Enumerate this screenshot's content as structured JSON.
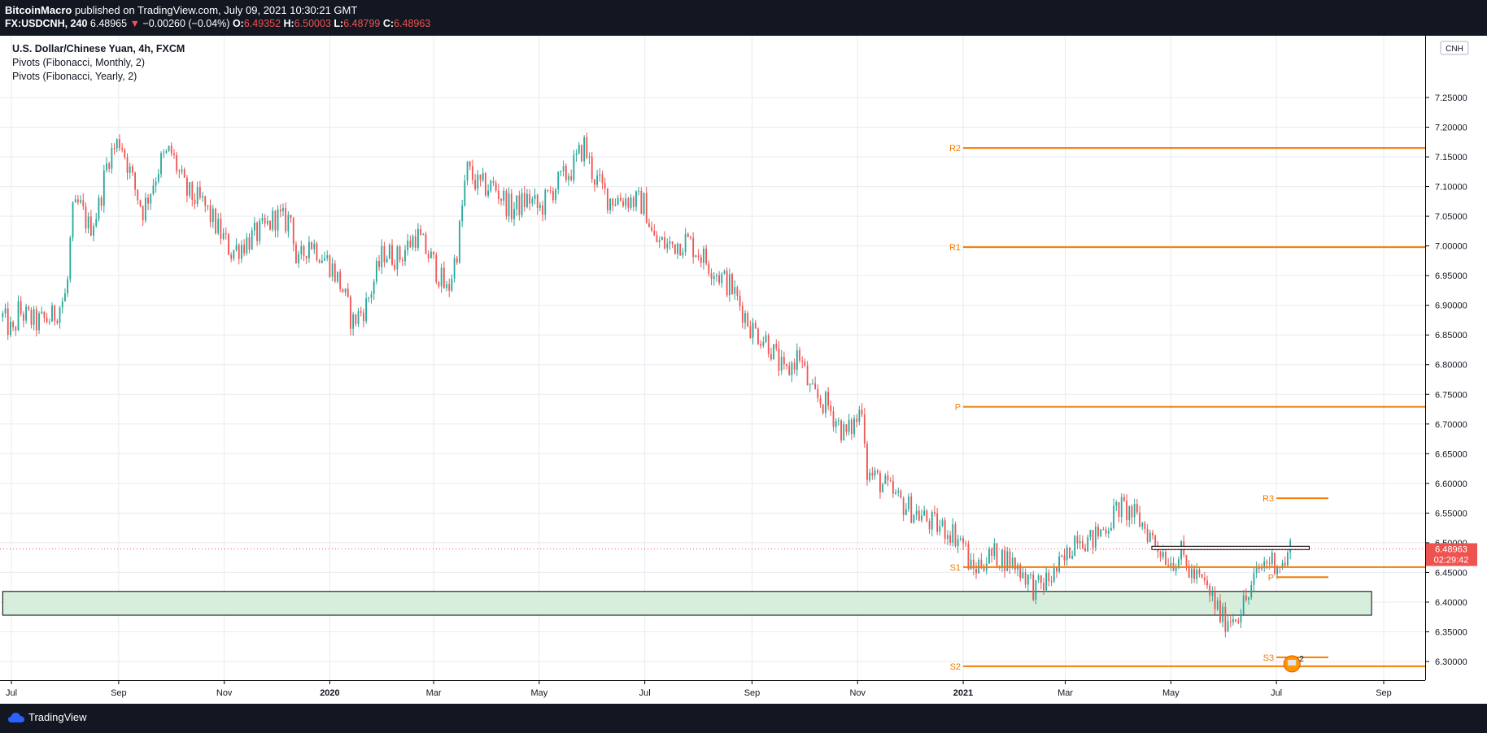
{
  "header": {
    "author": "BitcoinMacro",
    "published_text": " published on TradingView.com, July 09, 2021 10:30:21 GMT",
    "symbol_interval": "FX:USDCNH, 240",
    "last": "6.48965",
    "arrow": "▼",
    "change": "−0.00260 (−0.04%)",
    "o_label": "O:",
    "o_value": "6.49352",
    "h_label": "H:",
    "h_value": "6.50003",
    "l_label": "L:",
    "l_value": "6.48799",
    "c_label": "C:",
    "c_value": "6.48963"
  },
  "legend": {
    "symbol_title": "U.S. Dollar/Chinese Yuan, 4h, FXCM",
    "indicator_monthly": "Pivots (Fibonacci, Monthly, 2)",
    "indicator_yearly": "Pivots (Fibonacci, Yearly, 2)"
  },
  "footer": {
    "brand": "TradingView"
  },
  "colors": {
    "up": "#26a69a",
    "down": "#ef5350",
    "pivot": "#f57c00",
    "grid": "#e7ebf0",
    "zone": "#d7eedc"
  },
  "chart_data": {
    "type": "candlestick",
    "currency_label": "CNH",
    "ylim": [
      6.27,
      7.28
    ],
    "y_ticks": [
      "7.25000",
      "7.20000",
      "7.15000",
      "7.10000",
      "7.05000",
      "7.00000",
      "6.95000",
      "6.90000",
      "6.85000",
      "6.80000",
      "6.75000",
      "6.70000",
      "6.65000",
      "6.60000",
      "6.55000",
      "6.50000",
      "6.45000",
      "6.40000",
      "6.35000",
      "6.30000"
    ],
    "x_ticks": [
      {
        "label": "Jul",
        "date": "2019-07-01",
        "bold": false
      },
      {
        "label": "Sep",
        "date": "2019-09-01",
        "bold": false
      },
      {
        "label": "Nov",
        "date": "2019-11-01",
        "bold": false
      },
      {
        "label": "2020",
        "date": "2020-01-01",
        "bold": true
      },
      {
        "label": "Mar",
        "date": "2020-03-01",
        "bold": false
      },
      {
        "label": "May",
        "date": "2020-05-01",
        "bold": false
      },
      {
        "label": "Jul",
        "date": "2020-07-01",
        "bold": false
      },
      {
        "label": "Sep",
        "date": "2020-09-01",
        "bold": false
      },
      {
        "label": "Nov",
        "date": "2020-11-01",
        "bold": false
      },
      {
        "label": "2021",
        "date": "2021-01-01",
        "bold": true
      },
      {
        "label": "Mar",
        "date": "2021-03-01",
        "bold": false
      },
      {
        "label": "May",
        "date": "2021-05-01",
        "bold": false
      },
      {
        "label": "Jul",
        "date": "2021-07-01",
        "bold": false
      },
      {
        "label": "Sep",
        "date": "2021-09-01",
        "bold": false
      }
    ],
    "price_path": [
      [
        "2019-06-26",
        6.88
      ],
      [
        "2019-07-02",
        6.85
      ],
      [
        "2019-07-05",
        6.89
      ],
      [
        "2019-07-15",
        6.87
      ],
      [
        "2019-07-25",
        6.88
      ],
      [
        "2019-08-02",
        6.92
      ],
      [
        "2019-08-05",
        7.05
      ],
      [
        "2019-08-09",
        7.07
      ],
      [
        "2019-08-15",
        7.03
      ],
      [
        "2019-08-20",
        7.06
      ],
      [
        "2019-08-26",
        7.15
      ],
      [
        "2019-09-02",
        7.18
      ],
      [
        "2019-09-10",
        7.1
      ],
      [
        "2019-09-15",
        7.06
      ],
      [
        "2019-09-25",
        7.14
      ],
      [
        "2019-10-01",
        7.16
      ],
      [
        "2019-10-10",
        7.09
      ],
      [
        "2019-10-20",
        7.07
      ],
      [
        "2019-11-01",
        7.01
      ],
      [
        "2019-11-05",
        6.99
      ],
      [
        "2019-11-15",
        7.01
      ],
      [
        "2019-11-25",
        7.03
      ],
      [
        "2019-12-01",
        7.05
      ],
      [
        "2019-12-06",
        7.04
      ],
      [
        "2019-12-10",
        7.05
      ],
      [
        "2019-12-13",
        6.96
      ],
      [
        "2019-12-20",
        7.01
      ],
      [
        "2020-01-01",
        6.97
      ],
      [
        "2020-01-08",
        6.93
      ],
      [
        "2020-01-14",
        6.87
      ],
      [
        "2020-01-22",
        6.9
      ],
      [
        "2020-02-01",
        6.99
      ],
      [
        "2020-02-10",
        6.98
      ],
      [
        "2020-02-20",
        7.02
      ],
      [
        "2020-03-01",
        6.97
      ],
      [
        "2020-03-09",
        6.92
      ],
      [
        "2020-03-15",
        7.0
      ],
      [
        "2020-03-20",
        7.13
      ],
      [
        "2020-03-27",
        7.1
      ],
      [
        "2020-04-05",
        7.1
      ],
      [
        "2020-04-15",
        7.06
      ],
      [
        "2020-04-25",
        7.08
      ],
      [
        "2020-05-01",
        7.06
      ],
      [
        "2020-05-10",
        7.1
      ],
      [
        "2020-05-20",
        7.13
      ],
      [
        "2020-05-27",
        7.17
      ],
      [
        "2020-06-01",
        7.12
      ],
      [
        "2020-06-10",
        7.08
      ],
      [
        "2020-06-20",
        7.08
      ],
      [
        "2020-07-01",
        7.07
      ],
      [
        "2020-07-06",
        7.01
      ],
      [
        "2020-07-15",
        7.0
      ],
      [
        "2020-07-25",
        7.01
      ],
      [
        "2020-08-01",
        6.99
      ],
      [
        "2020-08-10",
        6.96
      ],
      [
        "2020-08-20",
        6.93
      ],
      [
        "2020-09-01",
        6.86
      ],
      [
        "2020-09-10",
        6.84
      ],
      [
        "2020-09-20",
        6.78
      ],
      [
        "2020-09-28",
        6.82
      ],
      [
        "2020-10-05",
        6.75
      ],
      [
        "2020-10-15",
        6.73
      ],
      [
        "2020-10-25",
        6.68
      ],
      [
        "2020-11-01",
        6.71
      ],
      [
        "2020-11-04",
        6.74
      ],
      [
        "2020-11-06",
        6.62
      ],
      [
        "2020-11-15",
        6.6
      ],
      [
        "2020-11-25",
        6.57
      ],
      [
        "2020-12-05",
        6.55
      ],
      [
        "2020-12-15",
        6.53
      ],
      [
        "2020-12-25",
        6.52
      ],
      [
        "2021-01-01",
        6.5
      ],
      [
        "2021-01-06",
        6.45
      ],
      [
        "2021-01-12",
        6.47
      ],
      [
        "2021-01-20",
        6.48
      ],
      [
        "2021-01-28",
        6.47
      ],
      [
        "2021-02-05",
        6.45
      ],
      [
        "2021-02-12",
        6.42
      ],
      [
        "2021-02-20",
        6.44
      ],
      [
        "2021-03-01",
        6.47
      ],
      [
        "2021-03-08",
        6.52
      ],
      [
        "2021-03-15",
        6.5
      ],
      [
        "2021-03-25",
        6.53
      ],
      [
        "2021-04-01",
        6.56
      ],
      [
        "2021-04-08",
        6.55
      ],
      [
        "2021-04-15",
        6.53
      ],
      [
        "2021-04-22",
        6.5
      ],
      [
        "2021-05-01",
        6.47
      ],
      [
        "2021-05-07",
        6.48
      ],
      [
        "2021-05-12",
        6.45
      ],
      [
        "2021-05-20",
        6.43
      ],
      [
        "2021-05-26",
        6.4
      ],
      [
        "2021-05-31",
        6.37
      ],
      [
        "2021-06-08",
        6.38
      ],
      [
        "2021-06-15",
        6.41
      ],
      [
        "2021-06-20",
        6.45
      ],
      [
        "2021-06-25",
        6.47
      ],
      [
        "2021-07-01",
        6.47
      ],
      [
        "2021-07-05",
        6.46
      ],
      [
        "2021-07-09",
        6.49
      ]
    ],
    "yearly_pivots": [
      {
        "label": "R2",
        "value": 7.165
      },
      {
        "label": "R1",
        "value": 6.998
      },
      {
        "label": "P",
        "value": 6.729
      },
      {
        "label": "S1",
        "value": 6.459
      },
      {
        "label": "S2",
        "value": 6.292
      }
    ],
    "monthly_pivots": [
      {
        "label": "R3",
        "value": 6.575
      },
      {
        "label": "P",
        "value": 6.442
      },
      {
        "label": "S3",
        "value": 6.307
      }
    ],
    "yearly_start": "2021-01-01",
    "monthly_start": "2021-07-01",
    "monthly_end": "2021-07-31",
    "zone": {
      "top": 6.418,
      "bottom": 6.378,
      "start": "2019-06-26",
      "end": "2021-08-25"
    },
    "resistance_box": {
      "top": 6.494,
      "bottom": 6.489,
      "start": "2021-04-20",
      "end": "2021-07-20"
    },
    "current_price": {
      "value": 6.48963,
      "label": "6.48963",
      "countdown": "02:29:42"
    },
    "events_badge": "2"
  }
}
